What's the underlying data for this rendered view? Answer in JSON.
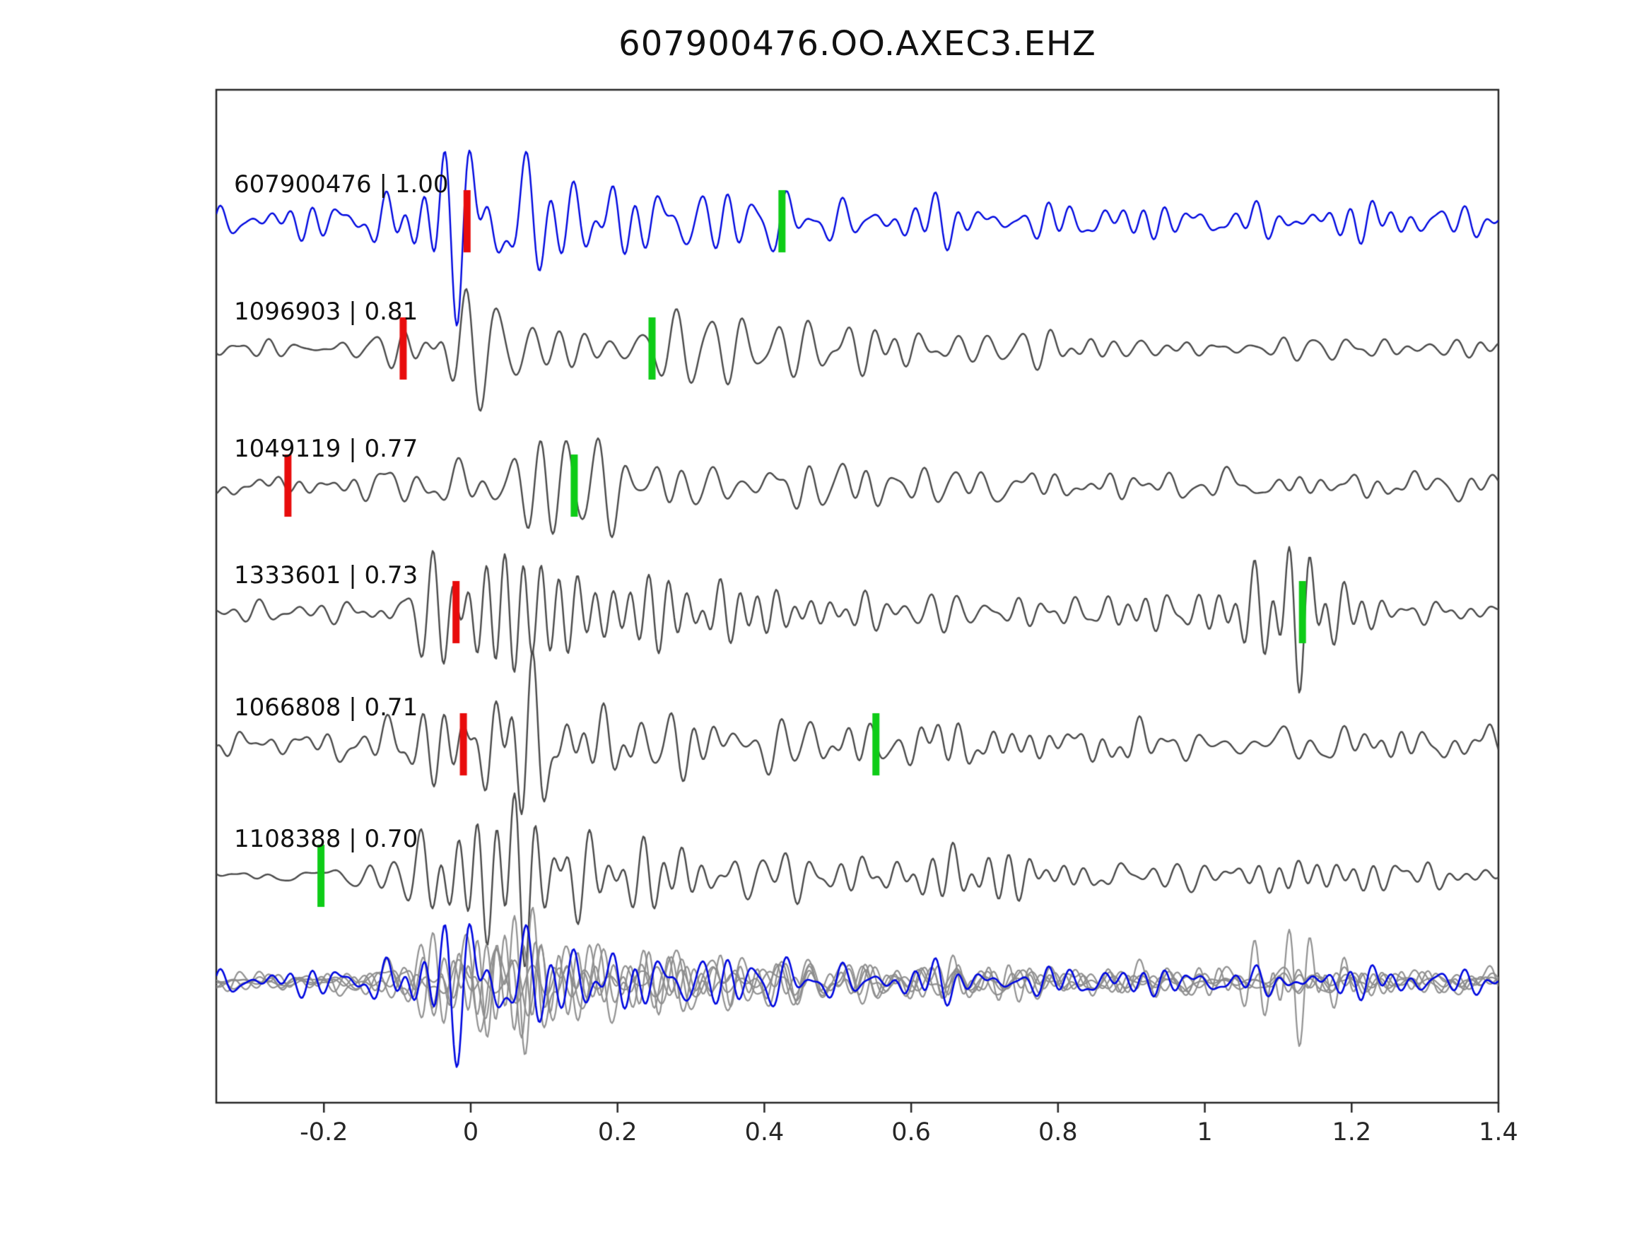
{
  "title": "607900476.OO.AXEC3.EHZ",
  "chart_data": {
    "type": "line",
    "subtype": "seismogram-template-matching",
    "title": "607900476.OO.AXEC3.EHZ",
    "xlabel": "",
    "ylabel": "",
    "xlim": [
      -0.3466,
      1.4
    ],
    "grid": false,
    "legend": "none",
    "x_ticks": [
      -0.2,
      0,
      0.2,
      0.4,
      0.6,
      0.8,
      1,
      1.2,
      1.4
    ],
    "x_tick_labels": [
      "-0.2",
      "0",
      "0.2",
      "0.4",
      "0.6",
      "0.8",
      "1",
      "1.2",
      "1.4"
    ],
    "colors": {
      "template_trace": "#0008e0",
      "detection_trace": "#4a4a4a",
      "overlay_gray": "#8c8c8c",
      "overlay_blue": "#0008e0",
      "pick_red": "#e80c0c",
      "pick_green": "#0ecc17",
      "axis": "#262626"
    },
    "traces": [
      {
        "event_id": "607900476",
        "correlation": 1.0,
        "label": "607900476 | 1.00",
        "color": "blue",
        "picks": [
          {
            "color": "red",
            "x": -0.005
          },
          {
            "color": "green",
            "x": 0.424
          }
        ]
      },
      {
        "event_id": "1096903",
        "correlation": 0.81,
        "label": "1096903 | 0.81",
        "color": "gray",
        "picks": [
          {
            "color": "red",
            "x": -0.092
          },
          {
            "color": "green",
            "x": 0.247
          }
        ]
      },
      {
        "event_id": "1049119",
        "correlation": 0.77,
        "label": "1049119 | 0.77",
        "color": "gray",
        "picks": [
          {
            "color": "red",
            "x": -0.249
          },
          {
            "color": "green",
            "x": 0.141
          }
        ]
      },
      {
        "event_id": "1333601",
        "correlation": 0.73,
        "label": "1333601 | 0.73",
        "color": "gray",
        "late_burst_x": 1.12,
        "picks": [
          {
            "color": "red",
            "x": -0.02
          },
          {
            "color": "green",
            "x": 1.133
          }
        ]
      },
      {
        "event_id": "1066808",
        "correlation": 0.71,
        "label": "1066808 | 0.71",
        "color": "gray",
        "picks": [
          {
            "color": "red",
            "x": -0.01
          },
          {
            "color": "green",
            "x": 0.552
          }
        ]
      },
      {
        "event_id": "1108388",
        "correlation": 0.7,
        "label": "1108388 | 0.70",
        "color": "gray",
        "picks": [
          {
            "color": "green",
            "x": -0.204
          }
        ]
      }
    ],
    "overlay_row": {
      "description": "all detection traces overlaid in gray with template trace in blue on top",
      "gray_trace_count": 5,
      "blue_trace_count": 1
    }
  }
}
